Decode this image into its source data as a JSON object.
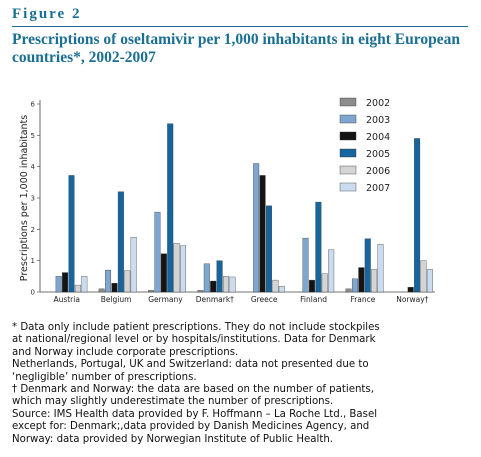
{
  "figure": {
    "label": "Figure 2",
    "title": "Prescriptions of oseltamivir per 1,000 inhabitants in eight European countries*, 2002-2007"
  },
  "colors": {
    "heading": "#1a6f93",
    "series": [
      "#8c8c8c",
      "#7ea6cf",
      "#141414",
      "#17659e",
      "#d4d4d4",
      "#ccdcf0"
    ],
    "stroke": "#333333"
  },
  "chart_data": {
    "type": "bar",
    "title": "",
    "xlabel": "",
    "ylabel": "Prescriptions per 1,000 inhabitants",
    "ylim": [
      0,
      6
    ],
    "yticks": [
      0,
      1,
      2,
      3,
      4,
      5,
      6
    ],
    "grid": false,
    "legend_position": "top-right",
    "categories": [
      "Austria",
      "Belgium",
      "Germany",
      "Denmark†",
      "Greece",
      "Finland",
      "France",
      "Norway†"
    ],
    "series": [
      {
        "name": "2002",
        "values": [
          0,
          0.1,
          0.05,
          0.05,
          0,
          0,
          0.1,
          0
        ]
      },
      {
        "name": "2003",
        "values": [
          0.5,
          0.7,
          2.55,
          0.9,
          4.1,
          1.72,
          0.42,
          0
        ]
      },
      {
        "name": "2004",
        "values": [
          0.62,
          0.28,
          1.22,
          0.35,
          3.72,
          0.38,
          0.78,
          0.15
        ]
      },
      {
        "name": "2005",
        "values": [
          3.72,
          3.2,
          5.37,
          1.0,
          2.75,
          2.87,
          1.7,
          4.9
        ]
      },
      {
        "name": "2006",
        "values": [
          0.22,
          0.68,
          1.55,
          0.5,
          0.38,
          0.58,
          0.72,
          1.0
        ]
      },
      {
        "name": "2007",
        "values": [
          0.5,
          1.75,
          1.48,
          0.48,
          0.18,
          1.35,
          1.52,
          0.72
        ]
      }
    ]
  },
  "footnotes": [
    "* Data only include patient prescriptions. They do not include stockpiles",
    "at national/regional level or by hospitals/institutions. Data for Denmark",
    "and Norway include corporate prescriptions.",
    "Netherlands, Portugal, UK and Switzerland: data not presented due to",
    "‘negligible’ number of prescriptions.",
    "† Denmark and Norway: the data are based on the number of patients,",
    "which may slightly underestimate the number of prescriptions.",
    "Source: IMS Health data provided by F. Hoffmann – La Roche Ltd., Basel",
    "except for: Denmark;,data provided by Danish Medicines Agency, and",
    "Norway: data provided by Norwegian Institute of Public Health."
  ]
}
